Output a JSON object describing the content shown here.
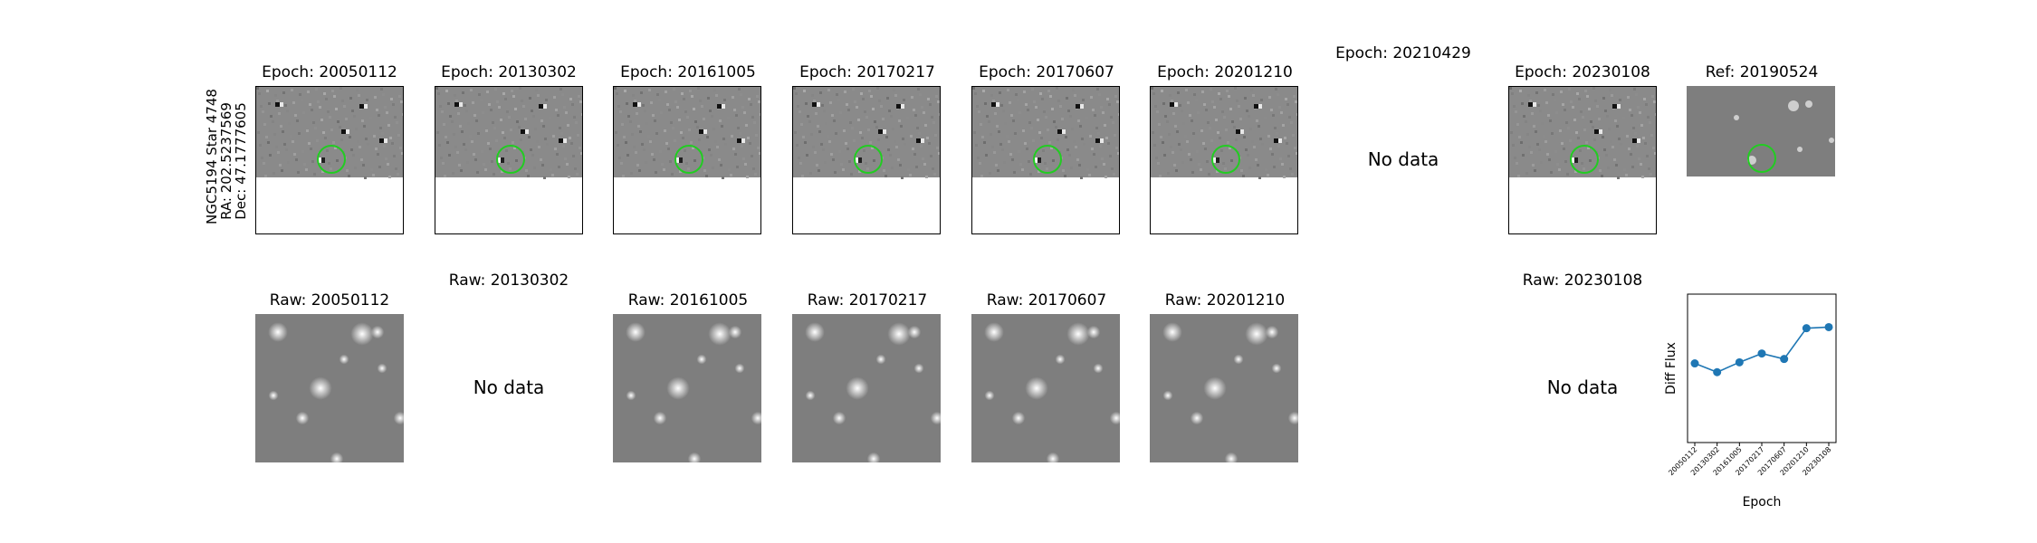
{
  "object_label": {
    "name": "NGC5194 Star 4748",
    "ra": "RA: 202.5237569",
    "dec": "Dec: 47.1777605"
  },
  "diff_row": [
    {
      "title": "Epoch: 20050112",
      "has_data": true,
      "coverage_rows": 0.61
    },
    {
      "title": "Epoch: 20130302",
      "has_data": true,
      "coverage_rows": 0.61
    },
    {
      "title": "Epoch: 20161005",
      "has_data": true,
      "coverage_rows": 0.61
    },
    {
      "title": "Epoch: 20170217",
      "has_data": true,
      "coverage_rows": 0.61
    },
    {
      "title": "Epoch: 20170607",
      "has_data": true,
      "coverage_rows": 0.61
    },
    {
      "title": "Epoch: 20201210",
      "has_data": true,
      "coverage_rows": 0.61
    },
    {
      "title": "Epoch: 20210429",
      "has_data": false,
      "nodata_text": "No data"
    },
    {
      "title": "Epoch: 20230108",
      "has_data": true,
      "coverage_rows": 0.61
    },
    {
      "title": "Ref: 20190524",
      "has_data": true,
      "reference": true
    }
  ],
  "raw_row": [
    {
      "title": "Raw: 20050112",
      "has_data": true
    },
    {
      "title": "Raw: 20130302",
      "has_data": false,
      "nodata_text": "No data"
    },
    {
      "title": "Raw: 20161005",
      "has_data": true
    },
    {
      "title": "Raw: 20170217",
      "has_data": true
    },
    {
      "title": "Raw: 20170607",
      "has_data": true
    },
    {
      "title": "Raw: 20201210",
      "has_data": true
    },
    {
      "title": "Raw: 20230108",
      "has_data": false,
      "nodata_text": "No data"
    }
  ],
  "colors": {
    "marker_circle": "#22cc22",
    "line": "#1f77b4",
    "diff_bg": "#8a8a8a",
    "raw_bg": "#7e7e7e"
  },
  "chart_data": {
    "type": "line",
    "title": "",
    "xlabel": "Epoch",
    "ylabel": "Diff Flux",
    "categories": [
      "20050112",
      "20130302",
      "20161005",
      "20170217",
      "20170607",
      "20201210",
      "20230108"
    ],
    "values": [
      0.42,
      0.34,
      0.43,
      0.51,
      0.46,
      0.74,
      0.75
    ],
    "ylim": [
      -0.3,
      1.05
    ],
    "ticks_y_shown": false,
    "grid": false,
    "markers": true
  }
}
